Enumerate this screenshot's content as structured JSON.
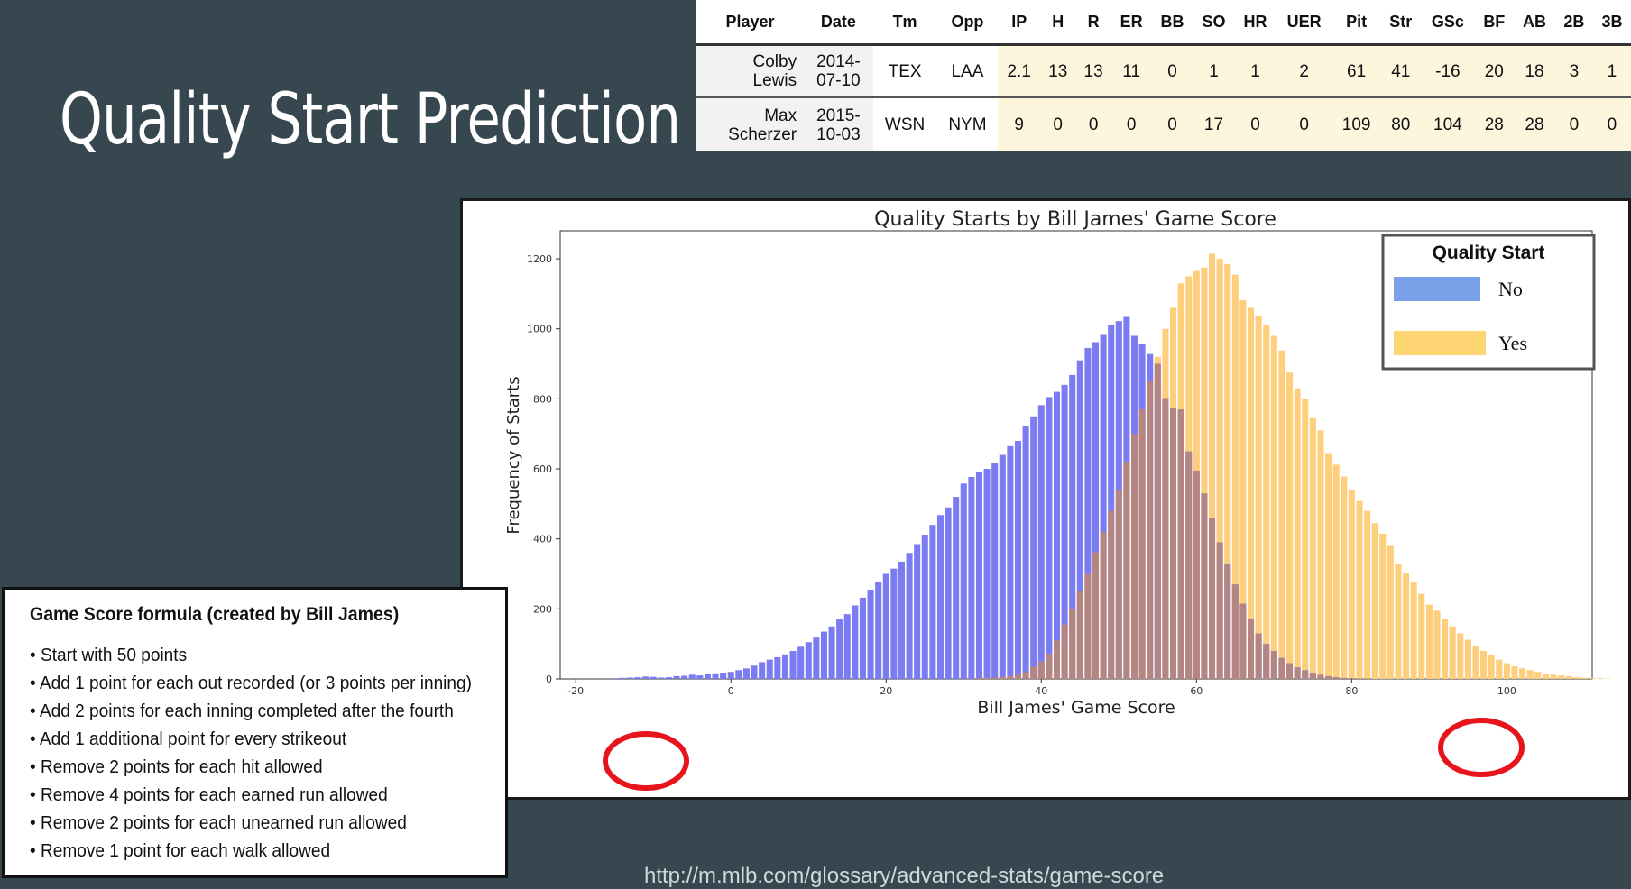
{
  "title": "Quality Start Prediction",
  "table": {
    "headers": [
      "Player",
      "Date",
      "Tm",
      "Opp",
      "IP",
      "H",
      "R",
      "ER",
      "BB",
      "SO",
      "HR",
      "UER",
      "Pit",
      "Str",
      "GSc",
      "BF",
      "AB",
      "2B",
      "3B"
    ],
    "rows": [
      {
        "player": [
          "Colby",
          "Lewis"
        ],
        "date": [
          "2014-",
          "07-10"
        ],
        "cells": [
          "TEX",
          "LAA",
          "2.1",
          "13",
          "13",
          "11",
          "0",
          "1",
          "1",
          "2",
          "61",
          "41",
          "-16",
          "20",
          "18",
          "3",
          "1"
        ]
      },
      {
        "player": [
          "Max",
          "Scherzer"
        ],
        "date": [
          "2015-",
          "10-03"
        ],
        "cells": [
          "WSN",
          "NYM",
          "9",
          "0",
          "0",
          "0",
          "0",
          "17",
          "0",
          "0",
          "109",
          "80",
          "104",
          "28",
          "28",
          "0",
          "0"
        ]
      }
    ]
  },
  "chart_data": {
    "type": "bar",
    "title": "Quality Starts by Bill James' Game Score",
    "xlabel": "Bill James' Game Score",
    "ylabel": "Frequency of Starts",
    "xlim": [
      -22,
      111
    ],
    "ylim": [
      0,
      1280
    ],
    "xticks": [
      -20,
      0,
      20,
      40,
      60,
      80,
      100
    ],
    "yticks": [
      0,
      200,
      400,
      600,
      800,
      1000,
      1200
    ],
    "legend": {
      "title": "Quality Start",
      "position": "top-right"
    },
    "colors": {
      "No": "#7b7bf2",
      "Yes": "#fdce7b",
      "overlap": "#b58581",
      "highlight": "#e8141c"
    },
    "series": [
      {
        "name": "No",
        "x_start": -15,
        "values": [
          2,
          3,
          4,
          5,
          7,
          6,
          4,
          5,
          8,
          9,
          12,
          10,
          14,
          16,
          18,
          20,
          25,
          30,
          38,
          48,
          55,
          62,
          70,
          80,
          92,
          105,
          118,
          135,
          150,
          170,
          185,
          210,
          232,
          255,
          278,
          300,
          315,
          335,
          360,
          385,
          412,
          440,
          468,
          490,
          520,
          558,
          577,
          590,
          600,
          618,
          640,
          665,
          680,
          722,
          750,
          782,
          805,
          820,
          840,
          868,
          910,
          945,
          962,
          985,
          1010,
          1022,
          1034,
          980,
          958,
          928,
          900,
          802,
          775,
          770,
          650,
          595,
          530,
          460,
          390,
          330,
          270,
          215,
          170,
          130,
          100,
          80,
          60,
          45,
          33,
          25,
          18,
          12,
          8,
          5,
          3,
          2,
          1,
          1
        ]
      },
      {
        "name": "Yes",
        "x_start": 31,
        "values": [
          1,
          2,
          3,
          4,
          6,
          8,
          12,
          20,
          35,
          50,
          72,
          110,
          155,
          200,
          250,
          300,
          362,
          420,
          480,
          540,
          620,
          700,
          770,
          850,
          920,
          1000,
          1060,
          1130,
          1150,
          1165,
          1175,
          1215,
          1200,
          1185,
          1155,
          1082,
          1060,
          1038,
          1010,
          980,
          938,
          875,
          830,
          800,
          745,
          710,
          645,
          612,
          578,
          540,
          508,
          480,
          445,
          415,
          380,
          330,
          302,
          275,
          243,
          212,
          195,
          172,
          150,
          130,
          112,
          95,
          80,
          68,
          55,
          45,
          36,
          30,
          25,
          20,
          15,
          12,
          10,
          8,
          5,
          4,
          3,
          2,
          1
        ]
      }
    ]
  },
  "formula": {
    "title": "Game Score formula (created by Bill James)",
    "items": [
      "Start with 50 points",
      "Add 1 point for each out recorded (or 3 points per inning)",
      "Add 2 points for each inning completed after the fourth",
      "Add 1 additional point for every strikeout",
      "Remove 2 points for each hit allowed",
      "Remove 4 points for each earned run allowed",
      "Remove 2 points for each unearned run allowed",
      "Remove 1 point for each walk allowed"
    ]
  },
  "source_url": "http://m.mlb.com/glossary/advanced-stats/game-score"
}
